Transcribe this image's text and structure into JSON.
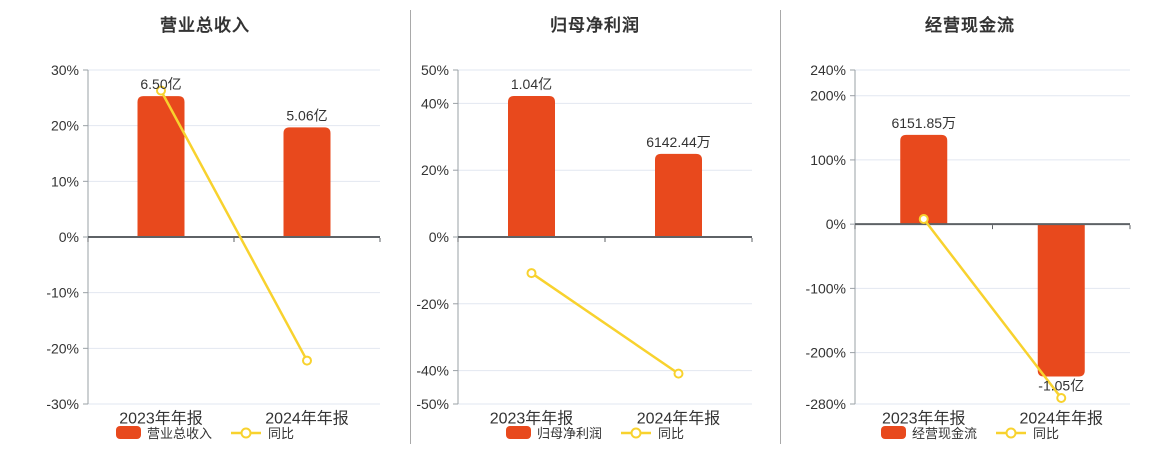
{
  "page": {
    "background": "#ffffff"
  },
  "colors": {
    "bar": "#e8491d",
    "line": "#f8d22e",
    "marker_fill": "#ffffff",
    "grid": "#e2e7f1",
    "zero_line": "#5e6266",
    "axis": "#9aa0a6",
    "text": "#333333",
    "divider": "#a9a9a9"
  },
  "chart_data": [
    {
      "type": "bar",
      "title": "营业总收入",
      "categories": [
        "2023年年报",
        "2024年年报"
      ],
      "series": [
        {
          "name": "营业总收入",
          "type": "bar",
          "values_text": [
            "6.50亿",
            "5.06亿"
          ],
          "values_wan": [
            65000,
            50600
          ],
          "display_pct": [
            25.3,
            19.7
          ]
        },
        {
          "name": "同比",
          "type": "line",
          "values_pct": [
            26.3,
            -22.2
          ]
        }
      ],
      "ylim": [
        -30,
        30
      ],
      "y_ticks": [
        30,
        20,
        10,
        0,
        -10,
        -20,
        -30
      ],
      "y_tick_suffix": "%",
      "grid": true,
      "legend_position": "bottom"
    },
    {
      "type": "bar",
      "title": "归母净利润",
      "categories": [
        "2023年年报",
        "2024年年报"
      ],
      "series": [
        {
          "name": "归母净利润",
          "type": "bar",
          "values_text": [
            "1.04亿",
            "6142.44万"
          ],
          "values_wan": [
            10400,
            6142.44
          ],
          "display_pct": [
            42.2,
            24.9
          ]
        },
        {
          "name": "同比",
          "type": "line",
          "values_pct": [
            -10.8,
            -40.9
          ]
        }
      ],
      "ylim": [
        -50,
        50
      ],
      "y_ticks": [
        50,
        40,
        20,
        0,
        -20,
        -40,
        -50
      ],
      "y_tick_suffix": "%",
      "grid": true,
      "legend_position": "bottom"
    },
    {
      "type": "bar",
      "title": "经营现金流",
      "categories": [
        "2023年年报",
        "2024年年报"
      ],
      "series": [
        {
          "name": "经营现金流",
          "type": "bar",
          "values_text": [
            "6151.85万",
            "-1.05亿"
          ],
          "values_wan": [
            6151.85,
            -10500
          ],
          "display_pct": [
            138.9,
            -237.2
          ]
        },
        {
          "name": "同比",
          "type": "line",
          "values_pct": [
            8.0,
            -270.7
          ]
        }
      ],
      "ylim": [
        -280,
        240
      ],
      "y_ticks": [
        240,
        200,
        100,
        0,
        -100,
        -200,
        -280
      ],
      "y_tick_suffix": "%",
      "grid": true,
      "legend_position": "bottom"
    }
  ]
}
